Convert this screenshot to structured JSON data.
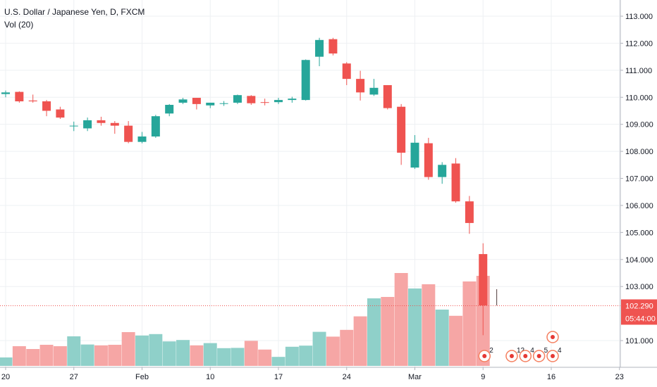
{
  "chart_data": {
    "type": "candlestick",
    "title": "U.S. Dollar / Japanese Yen, D, FXCM",
    "volume_label": "Vol (20)",
    "ylim": [
      100,
      113.4
    ],
    "x_tick_labels": [
      {
        "label": "20",
        "index": 0
      },
      {
        "label": "27",
        "index": 5
      },
      {
        "label": "Feb",
        "index": 10
      },
      {
        "label": "10",
        "index": 15
      },
      {
        "label": "17",
        "index": 20
      },
      {
        "label": "24",
        "index": 25
      },
      {
        "label": "Mar",
        "index": 30
      },
      {
        "label": "9",
        "index": 35
      },
      {
        "label": "16",
        "index": 40
      },
      {
        "label": "23",
        "index": 45
      }
    ],
    "y_ticks": [
      "113.000",
      "112.000",
      "111.000",
      "110.000",
      "109.000",
      "108.000",
      "107.000",
      "106.000",
      "105.000",
      "104.000",
      "103.000",
      "101.000"
    ],
    "last_price": "102.290",
    "countdown": "05:44:00",
    "colors": {
      "up": "#26a69a",
      "down": "#ef5350",
      "up_vol": "#8fd0c9",
      "down_vol": "#f6a6a5",
      "grid": "#eef0f3"
    },
    "candles": [
      {
        "o": 110.12,
        "h": 110.25,
        "l": 110.0,
        "c": 110.18,
        "v": 0.3
      },
      {
        "o": 110.2,
        "h": 110.22,
        "l": 109.8,
        "c": 109.85,
        "v": 0.7
      },
      {
        "o": 109.88,
        "h": 110.1,
        "l": 109.8,
        "c": 109.85,
        "v": 0.6
      },
      {
        "o": 109.85,
        "h": 109.9,
        "l": 109.3,
        "c": 109.5,
        "v": 0.75
      },
      {
        "o": 109.55,
        "h": 109.65,
        "l": 109.2,
        "c": 109.25,
        "v": 0.7
      },
      {
        "o": 108.95,
        "h": 109.1,
        "l": 108.75,
        "c": 108.95,
        "v": 1.05
      },
      {
        "o": 108.85,
        "h": 109.25,
        "l": 108.75,
        "c": 109.15,
        "v": 0.76
      },
      {
        "o": 109.15,
        "h": 109.28,
        "l": 108.95,
        "c": 109.05,
        "v": 0.73
      },
      {
        "o": 109.05,
        "h": 109.12,
        "l": 108.65,
        "c": 108.95,
        "v": 0.75
      },
      {
        "o": 108.95,
        "h": 109.12,
        "l": 108.3,
        "c": 108.35,
        "v": 1.2
      },
      {
        "o": 108.35,
        "h": 108.72,
        "l": 108.3,
        "c": 108.55,
        "v": 1.08
      },
      {
        "o": 108.55,
        "h": 109.35,
        "l": 108.5,
        "c": 109.3,
        "v": 1.13
      },
      {
        "o": 109.4,
        "h": 109.75,
        "l": 109.3,
        "c": 109.72,
        "v": 0.87
      },
      {
        "o": 109.8,
        "h": 109.98,
        "l": 109.75,
        "c": 109.92,
        "v": 0.92
      },
      {
        "o": 109.98,
        "h": 109.98,
        "l": 109.55,
        "c": 109.75,
        "v": 0.73
      },
      {
        "o": 109.7,
        "h": 109.8,
        "l": 109.6,
        "c": 109.8,
        "v": 0.81
      },
      {
        "o": 109.76,
        "h": 109.86,
        "l": 109.68,
        "c": 109.78,
        "v": 0.63
      },
      {
        "o": 109.8,
        "h": 110.1,
        "l": 109.75,
        "c": 110.08,
        "v": 0.64
      },
      {
        "o": 110.05,
        "h": 110.08,
        "l": 109.72,
        "c": 109.78,
        "v": 0.89
      },
      {
        "o": 109.82,
        "h": 109.95,
        "l": 109.7,
        "c": 109.8,
        "v": 0.58
      },
      {
        "o": 109.82,
        "h": 109.98,
        "l": 109.75,
        "c": 109.9,
        "v": 0.32
      },
      {
        "o": 109.9,
        "h": 110.02,
        "l": 109.8,
        "c": 109.95,
        "v": 0.68
      },
      {
        "o": 109.9,
        "h": 111.4,
        "l": 109.88,
        "c": 111.38,
        "v": 0.72
      },
      {
        "o": 111.5,
        "h": 112.2,
        "l": 111.15,
        "c": 112.12,
        "v": 1.21
      },
      {
        "o": 112.15,
        "h": 112.2,
        "l": 111.55,
        "c": 111.62,
        "v": 1.04
      },
      {
        "o": 111.25,
        "h": 111.3,
        "l": 110.45,
        "c": 110.68,
        "v": 1.28
      },
      {
        "o": 110.68,
        "h": 110.98,
        "l": 109.88,
        "c": 110.18,
        "v": 1.76
      },
      {
        "o": 110.1,
        "h": 110.68,
        "l": 110.05,
        "c": 110.35,
        "v": 2.4
      },
      {
        "o": 110.45,
        "h": 110.45,
        "l": 109.55,
        "c": 109.6,
        "v": 2.45
      },
      {
        "o": 109.65,
        "h": 109.75,
        "l": 107.5,
        "c": 107.95,
        "v": 3.3
      },
      {
        "o": 107.4,
        "h": 108.6,
        "l": 107.35,
        "c": 108.32,
        "v": 2.75
      },
      {
        "o": 108.3,
        "h": 108.5,
        "l": 106.95,
        "c": 107.05,
        "v": 2.9
      },
      {
        "o": 107.05,
        "h": 107.6,
        "l": 106.8,
        "c": 107.5,
        "v": 2.0
      },
      {
        "o": 107.55,
        "h": 107.75,
        "l": 106.1,
        "c": 106.15,
        "v": 1.78
      },
      {
        "o": 106.15,
        "h": 106.35,
        "l": 104.95,
        "c": 105.35,
        "v": 3.0
      },
      {
        "o": 104.2,
        "h": 104.6,
        "l": 101.2,
        "c": 102.3,
        "v": 3.2
      },
      {
        "o": 102.65,
        "h": 102.9,
        "l": 102.3,
        "c": 102.3,
        "v": 0
      }
    ],
    "events": [
      {
        "label": "2",
        "index": 35
      },
      {
        "label": "12",
        "index": 37
      },
      {
        "label": "4",
        "index": 38
      },
      {
        "label": "5",
        "index": 39
      },
      {
        "label": "4",
        "index": 40
      }
    ]
  }
}
